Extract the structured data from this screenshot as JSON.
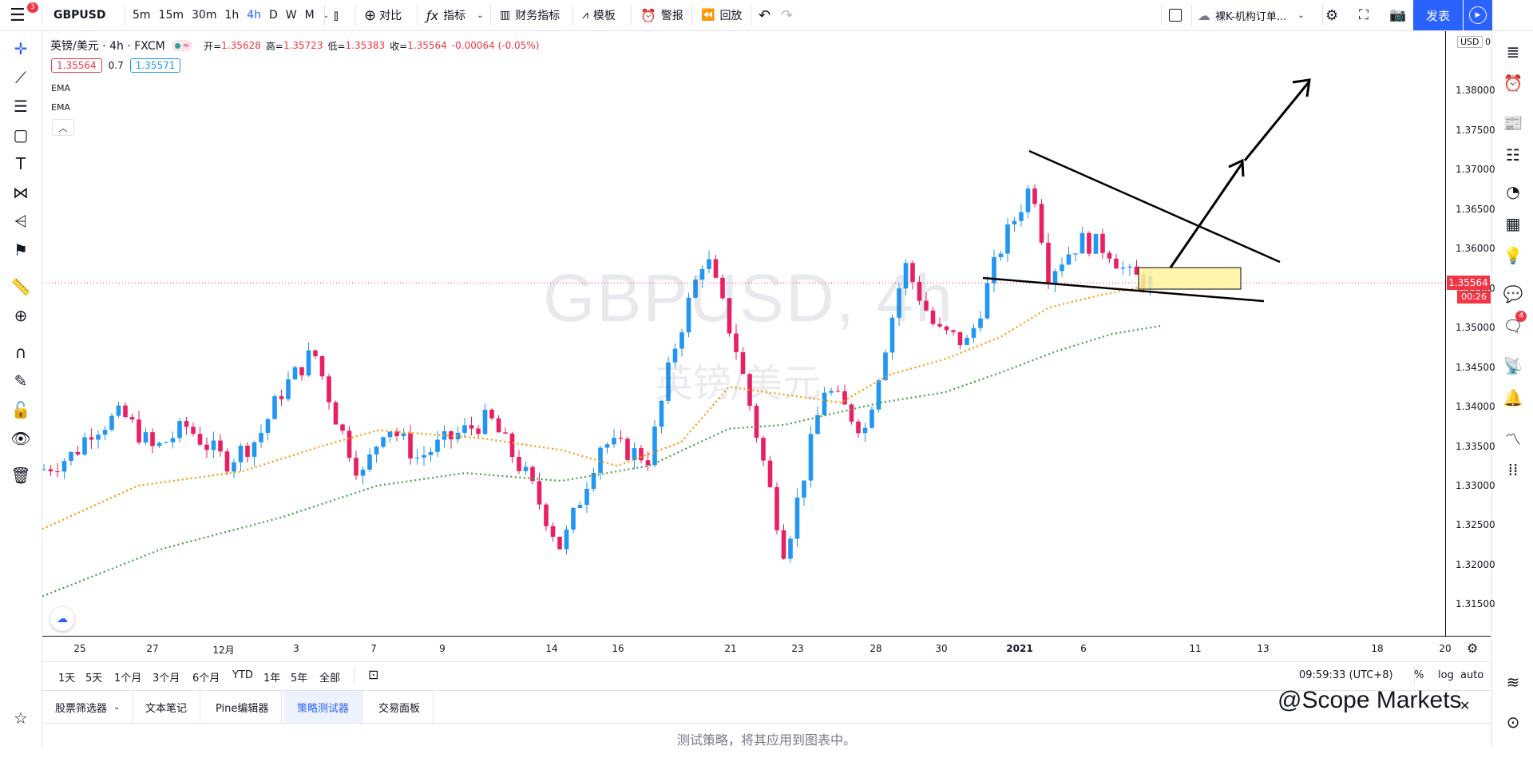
{
  "toolbar": {
    "notification_count": "3",
    "symbol": "GBPUSD",
    "intervals": [
      "5m",
      "15m",
      "30m",
      "1h",
      "4h",
      "D",
      "W",
      "M"
    ],
    "active_interval": "4h",
    "compare": "对比",
    "indicators": "指标",
    "financials": "财务指标",
    "templates": "模板",
    "alert": "警报",
    "replay": "回放",
    "layout_name": "裸K-机构订单...",
    "publish": "发表"
  },
  "legend": {
    "title": "英镑/美元 · 4h · FXCM",
    "open_label": "开=",
    "open": "1.35628",
    "high_label": "高=",
    "high": "1.35723",
    "low_label": "低=",
    "low": "1.35383",
    "close_label": "收=",
    "close": "1.35564",
    "change": "-0.00064 (-0.05%)",
    "bid": "1.35564",
    "spread": "0.7",
    "ask": "1.35571",
    "indicator1": "EMA",
    "indicator2": "EMA"
  },
  "watermark": {
    "symbol": "GBPUSD, 4h",
    "name": "英镑/美元"
  },
  "price_axis": {
    "currency": "USD",
    "currency_suffix": "0",
    "ticks": [
      "1.38000",
      "1.37500",
      "1.37000",
      "1.36500",
      "1.36000",
      "1.35500",
      "1.35000",
      "1.34500",
      "1.34000",
      "1.33500",
      "1.33000",
      "1.32500",
      "1.32000",
      "1.31500"
    ],
    "current_price": "1.35564",
    "countdown": "00:26"
  },
  "time_axis": {
    "ticks": [
      "25",
      "27",
      "12月",
      "3",
      "7",
      "9",
      "14",
      "16",
      "21",
      "23",
      "28",
      "30",
      "2021",
      "6",
      "11",
      "13",
      "18",
      "20"
    ]
  },
  "range_bar": {
    "ranges": [
      "1天",
      "5天",
      "1个月",
      "3个月",
      "6个月",
      "YTD",
      "1年",
      "5年",
      "全部"
    ],
    "clock": "09:59:33 (UTC+8)",
    "percent": "%",
    "log": "log",
    "auto": "auto"
  },
  "panels": {
    "tabs": [
      "股票筛选器",
      "文本笔记",
      "Pine编辑器",
      "策略测试器",
      "交易面板"
    ],
    "active_tab": "策略测试器",
    "hint": "测试策略，将其应用到图表中。"
  },
  "right_sidebar": {
    "chat_badge": "4"
  },
  "brand": "@Scope Markets",
  "chart_data": {
    "type": "candlestick",
    "title": "英镑/美元 · 4h · FXCM",
    "ylim": [
      1.311,
      1.3875
    ],
    "series": [
      {
        "name": "EMA",
        "color": "#ff9800"
      },
      {
        "name": "EMA",
        "color": "#43a047"
      }
    ],
    "last_close": 1.35564,
    "colors": {
      "up": "#2196f3",
      "down": "#e91e63",
      "ema_fast": "#ff9800",
      "ema_slow": "#43a047",
      "box": "#fff59d"
    }
  }
}
